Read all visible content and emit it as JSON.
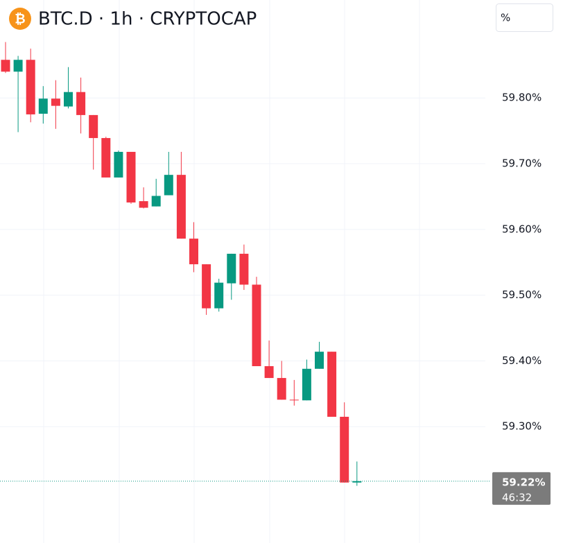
{
  "chart_data": {
    "type": "candlestick",
    "title": "BTC.D · 1h · CRYPTOCAP",
    "symbol_icon": "₿",
    "unit_button": "%",
    "up_color": "#089981",
    "down_color": "#f23645",
    "open": [
      59.858,
      59.84,
      59.858,
      59.776,
      59.799,
      59.787,
      59.809,
      59.774,
      59.739,
      59.679,
      59.718,
      59.643,
      59.635,
      59.652,
      59.683,
      59.586,
      59.547,
      59.48,
      59.518,
      59.563,
      59.516,
      59.392,
      59.374,
      59.341,
      59.34,
      59.388,
      59.414,
      59.315,
      59.215
    ],
    "high": [
      59.885,
      59.864,
      59.875,
      59.818,
      59.827,
      59.847,
      59.831,
      59.774,
      59.741,
      59.72,
      59.718,
      59.664,
      59.677,
      59.718,
      59.718,
      59.611,
      59.547,
      59.525,
      59.563,
      59.577,
      59.528,
      59.431,
      59.4,
      59.371,
      59.402,
      59.429,
      59.414,
      59.337,
      59.247
    ],
    "low": [
      59.838,
      59.748,
      59.763,
      59.761,
      59.753,
      59.784,
      59.746,
      59.691,
      59.679,
      59.679,
      59.639,
      59.632,
      59.635,
      59.652,
      59.586,
      59.535,
      59.47,
      59.475,
      59.493,
      59.508,
      59.392,
      59.374,
      59.341,
      59.332,
      59.34,
      59.388,
      59.315,
      59.215,
      59.21
    ],
    "close": [
      59.84,
      59.858,
      59.775,
      59.799,
      59.788,
      59.809,
      59.774,
      59.739,
      59.679,
      59.718,
      59.641,
      59.633,
      59.651,
      59.683,
      59.586,
      59.547,
      59.48,
      59.519,
      59.563,
      59.516,
      59.392,
      59.374,
      59.341,
      59.34,
      59.388,
      59.414,
      59.315,
      59.215,
      59.217
    ],
    "last_price_label": "59.22%",
    "countdown": "46:32",
    "ylim": [
      59.123,
      59.949
    ],
    "yticks": [
      {
        "value": 59.3,
        "label": "59.30%"
      },
      {
        "value": 59.4,
        "label": "59.40%"
      },
      {
        "value": 59.5,
        "label": "59.50%"
      },
      {
        "value": 59.6,
        "label": "59.60%"
      },
      {
        "value": 59.7,
        "label": "59.70%"
      },
      {
        "value": 59.8,
        "label": "59.80%"
      }
    ],
    "grid": true
  }
}
